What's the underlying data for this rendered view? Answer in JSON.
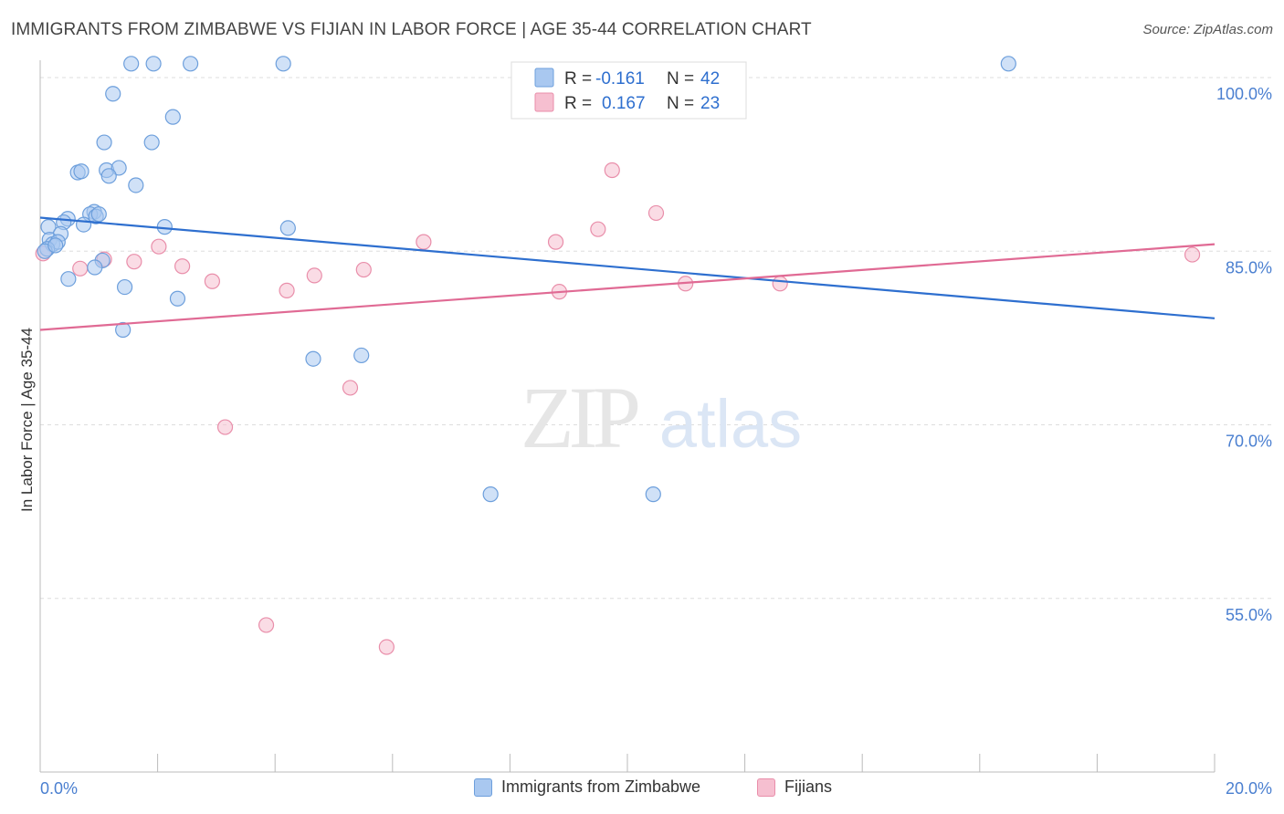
{
  "title": "IMMIGRANTS FROM ZIMBABWE VS FIJIAN IN LABOR FORCE | AGE 35-44 CORRELATION CHART",
  "source": "Source: ZipAtlas.com",
  "watermark": {
    "zip": "ZIP",
    "atlas": "atlas"
  },
  "colors": {
    "blue_fill": "#a9c8f0",
    "blue_stroke": "#6d9fdc",
    "blue_line": "#2e6fcf",
    "pink_fill": "#f6bfd0",
    "pink_stroke": "#e98eaa",
    "pink_line": "#e06a94",
    "axis_text": "#4a7fd0",
    "grid": "#dddddd"
  },
  "legend_top": {
    "rows": [
      {
        "r_label": "R = ",
        "r_value": "-0.161",
        "n_label": "N = ",
        "n_value": "42"
      },
      {
        "r_label": "R = ",
        "r_value": "0.167",
        "n_label": "N = ",
        "n_value": "23"
      }
    ]
  },
  "legend_bottom": [
    "Immigrants from Zimbabwe",
    "Fijians"
  ],
  "chart_data": {
    "type": "scatter",
    "title": "IMMIGRANTS FROM ZIMBABWE VS FIJIAN IN LABOR FORCE | AGE 35-44 CORRELATION CHART",
    "ylabel": "In Labor Force | Age 35-44",
    "xlabel": "",
    "xlim": [
      0,
      20
    ],
    "ylim": [
      40,
      101.5
    ],
    "x_tick_labels": [
      "0.0%",
      "20.0%"
    ],
    "y_ticks": [
      55,
      70,
      85,
      100
    ],
    "y_tick_labels": [
      "55.0%",
      "70.0%",
      "85.0%",
      "100.0%"
    ],
    "grid": true,
    "legend_placement": "top-center",
    "series": [
      {
        "name": "Immigrants from Zimbabwe",
        "r": -0.161,
        "n": 42,
        "trend": [
          [
            0,
            87.9
          ],
          [
            20,
            79.2
          ]
        ],
        "points": [
          [
            1.55,
            101.2
          ],
          [
            1.93,
            101.2
          ],
          [
            2.56,
            101.2
          ],
          [
            4.14,
            101.2
          ],
          [
            16.49,
            101.2
          ],
          [
            1.24,
            98.6
          ],
          [
            2.26,
            96.6
          ],
          [
            1.09,
            94.4
          ],
          [
            1.9,
            94.4
          ],
          [
            0.64,
            91.8
          ],
          [
            0.7,
            91.9
          ],
          [
            1.13,
            92.0
          ],
          [
            1.34,
            92.2
          ],
          [
            1.17,
            91.5
          ],
          [
            1.63,
            90.7
          ],
          [
            0.92,
            88.4
          ],
          [
            0.85,
            88.2
          ],
          [
            0.95,
            88.0
          ],
          [
            1.0,
            88.2
          ],
          [
            0.47,
            87.8
          ],
          [
            0.4,
            87.5
          ],
          [
            0.74,
            87.3
          ],
          [
            0.14,
            87.1
          ],
          [
            2.12,
            87.1
          ],
          [
            4.22,
            87.0
          ],
          [
            0.35,
            86.5
          ],
          [
            0.16,
            86.0
          ],
          [
            0.21,
            85.6
          ],
          [
            0.3,
            85.8
          ],
          [
            0.12,
            85.2
          ],
          [
            1.06,
            84.2
          ],
          [
            0.93,
            83.6
          ],
          [
            0.48,
            82.6
          ],
          [
            1.44,
            81.9
          ],
          [
            2.34,
            80.9
          ],
          [
            1.41,
            78.2
          ],
          [
            4.65,
            75.7
          ],
          [
            5.47,
            76.0
          ],
          [
            7.67,
            64.0
          ],
          [
            10.44,
            64.0
          ],
          [
            0.08,
            85.0
          ],
          [
            0.26,
            85.5
          ]
        ]
      },
      {
        "name": "Fijians",
        "r": 0.167,
        "n": 23,
        "trend": [
          [
            0,
            78.2
          ],
          [
            20,
            85.6
          ]
        ],
        "points": [
          [
            0.05,
            84.8
          ],
          [
            0.68,
            83.5
          ],
          [
            1.09,
            84.3
          ],
          [
            1.6,
            84.1
          ],
          [
            2.02,
            85.4
          ],
          [
            2.42,
            83.7
          ],
          [
            2.93,
            82.4
          ],
          [
            3.15,
            69.8
          ],
          [
            3.85,
            52.7
          ],
          [
            4.2,
            81.6
          ],
          [
            4.67,
            82.9
          ],
          [
            5.28,
            73.2
          ],
          [
            5.51,
            83.4
          ],
          [
            5.9,
            50.8
          ],
          [
            6.53,
            85.8
          ],
          [
            8.78,
            85.8
          ],
          [
            8.84,
            81.5
          ],
          [
            9.5,
            86.9
          ],
          [
            9.74,
            92.0
          ],
          [
            10.49,
            88.3
          ],
          [
            10.99,
            82.2
          ],
          [
            12.6,
            82.2
          ],
          [
            19.62,
            84.7
          ]
        ]
      }
    ]
  }
}
